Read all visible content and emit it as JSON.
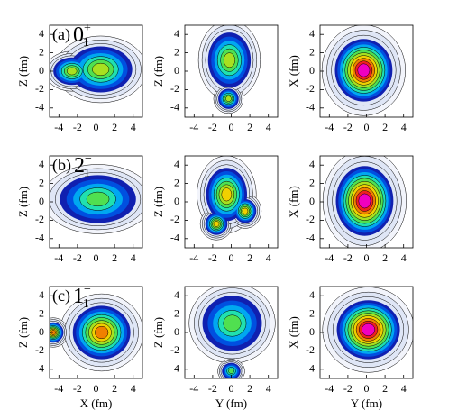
{
  "chart_data": [
    {
      "type": "contour",
      "panel_label": "(a)",
      "state_j": "0",
      "state_parity": "+",
      "state_index": "1",
      "ylabel": "Z (fm)",
      "xlim": [
        -5,
        5
      ],
      "ylim": [
        -5,
        5
      ],
      "xticks": [
        -4,
        -2,
        0,
        2,
        4
      ],
      "yticks": [
        -4,
        -2,
        0,
        2,
        4
      ]
    },
    {
      "type": "contour",
      "ylabel": "Z (fm)",
      "xlim": [
        -5,
        5
      ],
      "ylim": [
        -5,
        5
      ],
      "xticks": [
        -4,
        -2,
        0,
        2,
        4
      ],
      "yticks": [
        -4,
        -2,
        0,
        2,
        4
      ]
    },
    {
      "type": "contour",
      "ylabel": "X (fm)",
      "xlim": [
        -5,
        5
      ],
      "ylim": [
        -5,
        5
      ],
      "xticks": [
        -4,
        -2,
        0,
        2,
        4
      ],
      "yticks": [
        -4,
        -2,
        0,
        2,
        4
      ]
    },
    {
      "type": "contour",
      "panel_label": "(b)",
      "state_j": "2",
      "state_parity": "−",
      "state_index": "1",
      "ylabel": "Z (fm)",
      "xlim": [
        -5,
        5
      ],
      "ylim": [
        -5,
        5
      ],
      "xticks": [
        -4,
        -2,
        0,
        2,
        4
      ],
      "yticks": [
        -4,
        -2,
        0,
        2,
        4
      ]
    },
    {
      "type": "contour",
      "ylabel": "Z (fm)",
      "xlim": [
        -5,
        5
      ],
      "ylim": [
        -5,
        5
      ],
      "xticks": [
        -4,
        -2,
        0,
        2,
        4
      ],
      "yticks": [
        -4,
        -2,
        0,
        2,
        4
      ]
    },
    {
      "type": "contour",
      "ylabel": "X (fm)",
      "xlim": [
        -5,
        5
      ],
      "ylim": [
        -5,
        5
      ],
      "xticks": [
        -4,
        -2,
        0,
        2,
        4
      ],
      "yticks": [
        -4,
        -2,
        0,
        2,
        4
      ]
    },
    {
      "type": "contour",
      "panel_label": "(c)",
      "state_j": "1",
      "state_parity": "−",
      "state_index": "1",
      "ylabel": "Z (fm)",
      "xlabel": "X (fm)",
      "xlim": [
        -5,
        5
      ],
      "ylim": [
        -5,
        5
      ],
      "xticks": [
        -4,
        -2,
        0,
        2,
        4
      ],
      "yticks": [
        -4,
        -2,
        0,
        2,
        4
      ]
    },
    {
      "type": "contour",
      "ylabel": "Z (fm)",
      "xlabel": "Y (fm)",
      "xlim": [
        -5,
        5
      ],
      "ylim": [
        -5,
        5
      ],
      "xticks": [
        -4,
        -2,
        0,
        2,
        4
      ],
      "yticks": [
        -4,
        -2,
        0,
        2,
        4
      ]
    },
    {
      "type": "contour",
      "ylabel": "X (fm)",
      "xlabel": "Y (fm)",
      "xlim": [
        -5,
        5
      ],
      "ylim": [
        -5,
        5
      ],
      "xticks": [
        -4,
        -2,
        0,
        2,
        4
      ],
      "yticks": [
        -4,
        -2,
        0,
        2,
        4
      ]
    }
  ]
}
